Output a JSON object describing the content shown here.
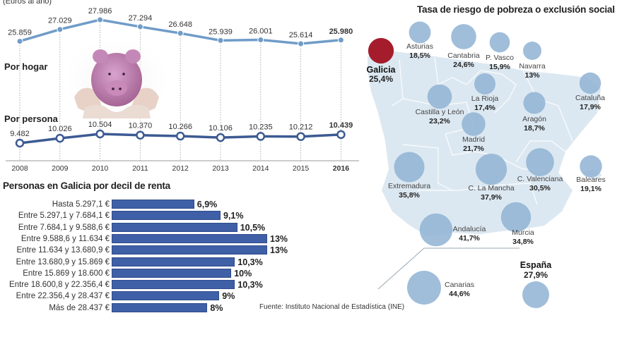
{
  "line_section": {
    "subtitle": "(Euros al año)",
    "series_labels": {
      "hogar": "Por hogar",
      "persona": "Por persona"
    },
    "image": "piggy-bank-in-hands-photo"
  },
  "bars_section": {
    "title": "Personas en Galicia por decil de renta",
    "source": "Fuente: Instituto Nacional de Estadística (INE)"
  },
  "map_section": {
    "title": "Tasa de riesgo de pobreza o exclusión social"
  },
  "colors": {
    "hogar_line": "#6f9cc8",
    "persona_line": "#3c5a93",
    "bar": "#3f5fa6",
    "bubble": "#8fb3d3",
    "galicia_bubble": "#a51d2d",
    "map_land": "#dce8f1"
  },
  "chart_data": [
    {
      "type": "line",
      "title": "(Euros al año)",
      "x": [
        "2008",
        "2009",
        "2010",
        "2011",
        "2012",
        "2013",
        "2014",
        "2015",
        "2016"
      ],
      "series": [
        {
          "name": "Por hogar",
          "values": [
            25859,
            27029,
            27986,
            27294,
            26648,
            25939,
            26001,
            25614,
            25980
          ],
          "labels": [
            "25.859",
            "27.029",
            "27.986",
            "27.294",
            "26.648",
            "25.939",
            "26.001",
            "25.614",
            "25.980"
          ]
        },
        {
          "name": "Por persona",
          "values": [
            9482,
            10026,
            10504,
            10370,
            10266,
            10106,
            10235,
            10212,
            10439
          ],
          "labels": [
            "9.482",
            "10.026",
            "10.504",
            "10.370",
            "10.266",
            "10.106",
            "10.235",
            "10.212",
            "10.439"
          ]
        }
      ],
      "xlabel": "",
      "ylabel": "",
      "grid": false
    },
    {
      "type": "bar",
      "orientation": "horizontal",
      "title": "Personas en Galicia por decil de renta",
      "categories": [
        "Hasta 5.297,1 €",
        "Entre 5.297,1 y 7.684,1 €",
        "Entre 7.684,1 y 9.588,6 €",
        "Entre 9.588,6 y 11.634 €",
        "Entre 11.634 y 13.680,9 €",
        "Entre 13.680,9 y 15.869 €",
        "Entre 15.869 y 18.600 €",
        "Entre 18.600,8 y 22.356,4 €",
        "Entre 22.356,4 y 28.437 €",
        "Más de 28.437 €"
      ],
      "values": [
        6.9,
        9.1,
        10.5,
        13,
        13,
        10.3,
        10,
        10.3,
        9,
        8
      ],
      "labels": [
        "6,9%",
        "9,1%",
        "10,5%",
        "13%",
        "13%",
        "10,3%",
        "10%",
        "10,3%",
        "9%",
        "8%"
      ],
      "unit": "%"
    },
    {
      "type": "scatter",
      "subtype": "bubble-map",
      "title": "Tasa de riesgo de pobreza o exclusión social",
      "regions": [
        {
          "name": "Galicia",
          "value": 25.4,
          "label": "25,4%",
          "highlight": true
        },
        {
          "name": "Asturias",
          "value": 18.5,
          "label": "18,5%"
        },
        {
          "name": "Cantabria",
          "value": 24.6,
          "label": "24,6%"
        },
        {
          "name": "P. Vasco",
          "value": 15.9,
          "label": "15,9%"
        },
        {
          "name": "Navarra",
          "value": 13,
          "label": "13%"
        },
        {
          "name": "La Rioja",
          "value": 17.4,
          "label": "17,4%"
        },
        {
          "name": "Cataluña",
          "value": 17.9,
          "label": "17,9%"
        },
        {
          "name": "Castilla y León",
          "value": 23.2,
          "label": "23,2%"
        },
        {
          "name": "Aragón",
          "value": 18.7,
          "label": "18,7%"
        },
        {
          "name": "Madrid",
          "value": 21.7,
          "label": "21,7%"
        },
        {
          "name": "Extremadura",
          "value": 35.8,
          "label": "35,8%"
        },
        {
          "name": "C. La Mancha",
          "value": 37.9,
          "label": "37,9%"
        },
        {
          "name": "C. Valenciana",
          "value": 30.5,
          "label": "30,5%"
        },
        {
          "name": "Baleares",
          "value": 19.1,
          "label": "19,1%"
        },
        {
          "name": "Andalucía",
          "value": 41.7,
          "label": "41,7%"
        },
        {
          "name": "Murcia",
          "value": 34.8,
          "label": "34,8%"
        },
        {
          "name": "Canarias",
          "value": 44.6,
          "label": "44,6%"
        },
        {
          "name": "España",
          "value": 27.9,
          "label": "27,9%",
          "total": true
        }
      ]
    }
  ]
}
